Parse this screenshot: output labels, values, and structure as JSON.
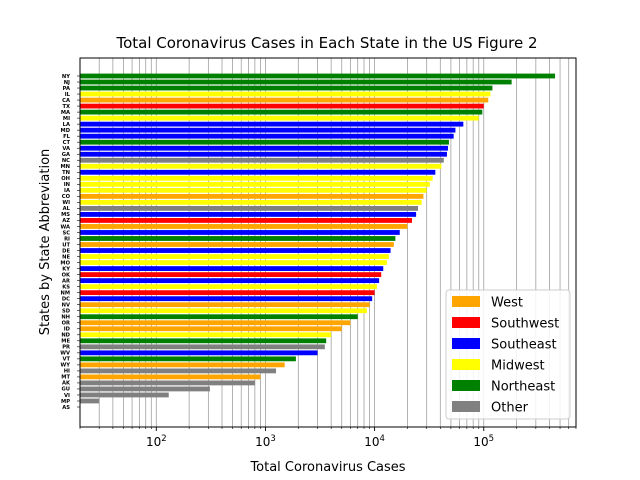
{
  "chart_data": {
    "type": "bar",
    "orientation": "horizontal",
    "title": "Total Coronavirus Cases in Each State in the US Figure 2",
    "xlabel": "Total Coronavirus Cases",
    "ylabel": "States by State Abbreviation",
    "x_scale": "log",
    "xlim": [
      20,
      700000
    ],
    "x_tick_labels": [
      {
        "value": 100,
        "base": "10",
        "exp": "2"
      },
      {
        "value": 1000,
        "base": "10",
        "exp": "3"
      },
      {
        "value": 10000,
        "base": "10",
        "exp": "4"
      },
      {
        "value": 100000,
        "base": "10",
        "exp": "5"
      }
    ],
    "grid": "vertical-minor-and-major",
    "legend_position": "lower-right",
    "legend": [
      {
        "label": "West",
        "color": "#ffa500"
      },
      {
        "label": "Southwest",
        "color": "#ff0000"
      },
      {
        "label": "Southeast",
        "color": "#0000ff"
      },
      {
        "label": "Midwest",
        "color": "#ffff00"
      },
      {
        "label": "Northeast",
        "color": "#008000"
      },
      {
        "label": "Other",
        "color": "#808080"
      }
    ],
    "bars": [
      {
        "state": "NY",
        "value": 450000,
        "region": "Northeast"
      },
      {
        "state": "NJ",
        "value": 180000,
        "region": "Northeast"
      },
      {
        "state": "PA",
        "value": 120000,
        "region": "Northeast"
      },
      {
        "state": "IL",
        "value": 115000,
        "region": "Midwest"
      },
      {
        "state": "CA",
        "value": 110000,
        "region": "West"
      },
      {
        "state": "TX",
        "value": 100000,
        "region": "Southwest"
      },
      {
        "state": "MA",
        "value": 97000,
        "region": "Northeast"
      },
      {
        "state": "MI",
        "value": 90000,
        "region": "Midwest"
      },
      {
        "state": "LA",
        "value": 65000,
        "region": "Southeast"
      },
      {
        "state": "MD",
        "value": 55000,
        "region": "Southeast"
      },
      {
        "state": "FL",
        "value": 53000,
        "region": "Southeast"
      },
      {
        "state": "CT",
        "value": 48000,
        "region": "Northeast"
      },
      {
        "state": "VA",
        "value": 47000,
        "region": "Southeast"
      },
      {
        "state": "GA",
        "value": 46000,
        "region": "Southeast"
      },
      {
        "state": "NC",
        "value": 43000,
        "region": "Other"
      },
      {
        "state": "MN",
        "value": 41000,
        "region": "Midwest"
      },
      {
        "state": "TN",
        "value": 36000,
        "region": "Southeast"
      },
      {
        "state": "OH",
        "value": 34000,
        "region": "Midwest"
      },
      {
        "state": "IN",
        "value": 32000,
        "region": "Midwest"
      },
      {
        "state": "IA",
        "value": 30000,
        "region": "Midwest"
      },
      {
        "state": "CO",
        "value": 28000,
        "region": "West"
      },
      {
        "state": "WI",
        "value": 27000,
        "region": "Midwest"
      },
      {
        "state": "AL",
        "value": 25000,
        "region": "Other"
      },
      {
        "state": "MS",
        "value": 24000,
        "region": "Southeast"
      },
      {
        "state": "AZ",
        "value": 22000,
        "region": "Southwest"
      },
      {
        "state": "WA",
        "value": 20000,
        "region": "West"
      },
      {
        "state": "SC",
        "value": 17000,
        "region": "Southeast"
      },
      {
        "state": "RI",
        "value": 15500,
        "region": "Northeast"
      },
      {
        "state": "UT",
        "value": 15000,
        "region": "West"
      },
      {
        "state": "DE",
        "value": 14000,
        "region": "Southeast"
      },
      {
        "state": "NE",
        "value": 13500,
        "region": "Midwest"
      },
      {
        "state": "MO",
        "value": 13000,
        "region": "Midwest"
      },
      {
        "state": "KY",
        "value": 12000,
        "region": "Southeast"
      },
      {
        "state": "OK",
        "value": 11500,
        "region": "Southwest"
      },
      {
        "state": "AR",
        "value": 11000,
        "region": "Southeast"
      },
      {
        "state": "KS",
        "value": 10500,
        "region": "Midwest"
      },
      {
        "state": "NM",
        "value": 10000,
        "region": "Southwest"
      },
      {
        "state": "DC",
        "value": 9500,
        "region": "Southeast"
      },
      {
        "state": "NV",
        "value": 9000,
        "region": "West"
      },
      {
        "state": "SD",
        "value": 8500,
        "region": "Midwest"
      },
      {
        "state": "NH",
        "value": 7000,
        "region": "Northeast"
      },
      {
        "state": "OR",
        "value": 6000,
        "region": "West"
      },
      {
        "state": "ID",
        "value": 5000,
        "region": "West"
      },
      {
        "state": "ND",
        "value": 4000,
        "region": "Midwest"
      },
      {
        "state": "ME",
        "value": 3600,
        "region": "Northeast"
      },
      {
        "state": "PR",
        "value": 3500,
        "region": "Other"
      },
      {
        "state": "WV",
        "value": 3000,
        "region": "Southeast"
      },
      {
        "state": "VT",
        "value": 1900,
        "region": "Northeast"
      },
      {
        "state": "WY",
        "value": 1500,
        "region": "West"
      },
      {
        "state": "HI",
        "value": 1250,
        "region": "Other"
      },
      {
        "state": "MT",
        "value": 900,
        "region": "West"
      },
      {
        "state": "AK",
        "value": 800,
        "region": "Other"
      },
      {
        "state": "GU",
        "value": 310,
        "region": "Other"
      },
      {
        "state": "VI",
        "value": 130,
        "region": "Other"
      },
      {
        "state": "MP",
        "value": 30,
        "region": "Other"
      },
      {
        "state": "AS",
        "value": 0,
        "region": "Other"
      }
    ]
  }
}
